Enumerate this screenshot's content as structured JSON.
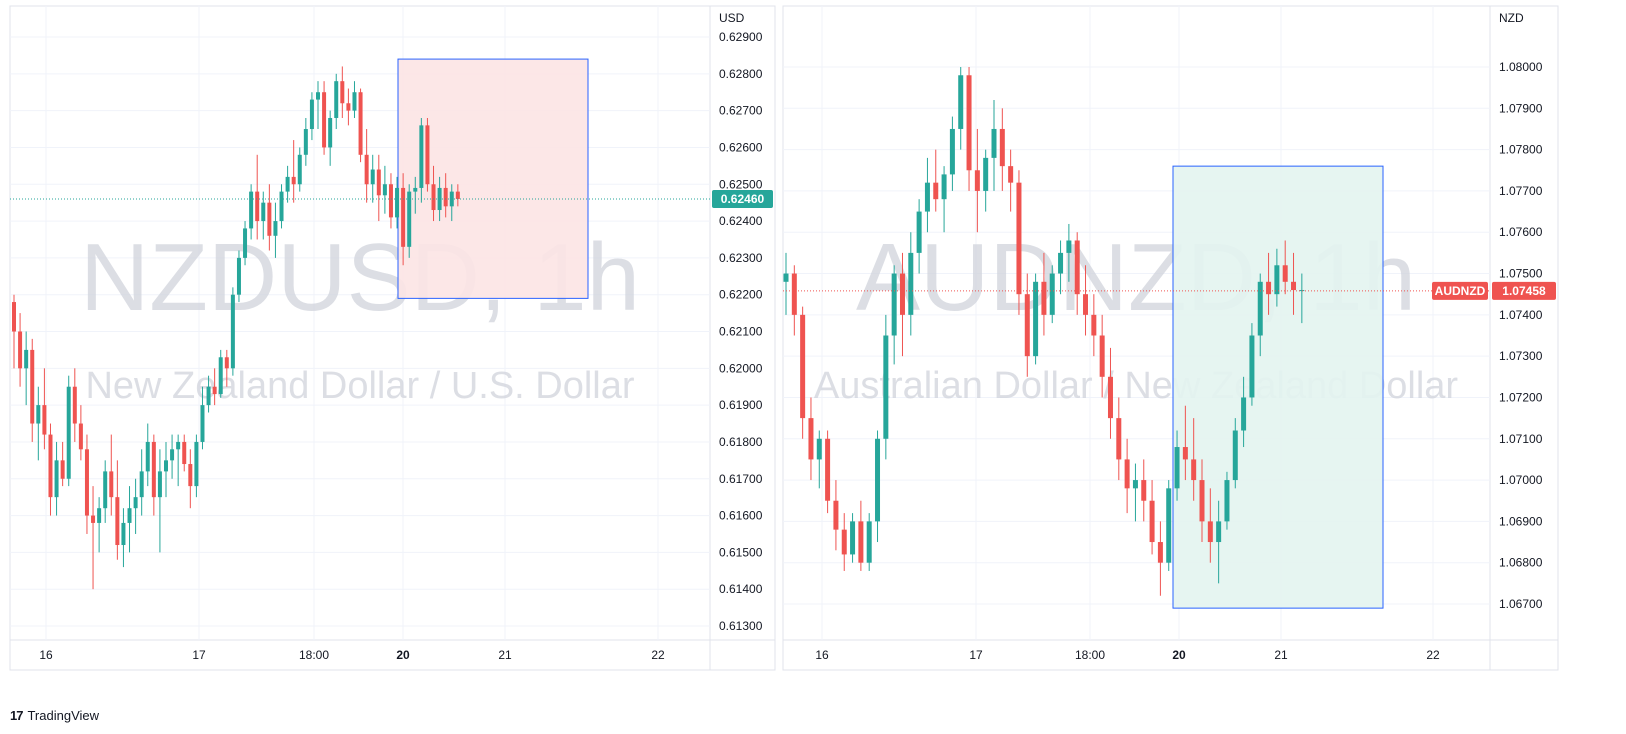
{
  "branding": {
    "logo_mark": "17",
    "logo_text": "TradingView"
  },
  "chart_data": [
    {
      "type": "candlestick",
      "symbol": "NZDUSD",
      "timeframe": "1h",
      "watermark_symbol": "NZDUSD, 1h",
      "watermark_description": "New Zealand Dollar / U.S. Dollar",
      "currency": "USD",
      "y_range": [
        0.6125,
        0.6293
      ],
      "y_ticks": [
        0.613,
        0.614,
        0.615,
        0.616,
        0.617,
        0.618,
        0.619,
        0.62,
        0.621,
        0.622,
        0.623,
        0.624,
        0.625,
        0.626,
        0.627,
        0.628,
        0.629
      ],
      "y_tick_labels": [
        "0.61300",
        "0.61400",
        "0.61500",
        "0.61600",
        "0.61700",
        "0.61800",
        "0.61900",
        "0.62000",
        "0.62100",
        "0.62200",
        "0.62300",
        "0.62400",
        "0.62500",
        "0.62600",
        "0.62700",
        "0.62800",
        "0.62900"
      ],
      "x_range": [
        15.6,
        22.6
      ],
      "x_ticks": [
        {
          "x": 16.0,
          "label": "16",
          "bold": false
        },
        {
          "x": 17.0,
          "label": "17",
          "bold": false
        },
        {
          "x": 17.75,
          "label": "18:00",
          "bold": false
        },
        {
          "x": 18.33,
          "label": "20",
          "bold": true
        },
        {
          "x": 19.0,
          "label": "21",
          "bold": false
        },
        {
          "x": 20.0,
          "label": "22",
          "bold": false
        }
      ],
      "last_price": 0.6246,
      "last_price_label": "0.62460",
      "badge_color": "#26a69a",
      "line_color": "#26a69a",
      "highlight_box": {
        "x_start": 18.3,
        "x_end": 19.55,
        "y_low": 0.6219,
        "y_high": 0.6284,
        "fill": "#fce4e4",
        "stroke": "#2962ff"
      },
      "series": [
        {
          "name": "candles",
          "ohlc": [
            [
              0.6218,
              0.622,
              0.62,
              0.621
            ],
            [
              0.621,
              0.6215,
              0.6195,
              0.62
            ],
            [
              0.62,
              0.621,
              0.619,
              0.6205
            ],
            [
              0.6205,
              0.6208,
              0.618,
              0.6185
            ],
            [
              0.6185,
              0.6195,
              0.6175,
              0.619
            ],
            [
              0.619,
              0.62,
              0.6178,
              0.6182
            ],
            [
              0.6182,
              0.6185,
              0.616,
              0.6165
            ],
            [
              0.6165,
              0.618,
              0.616,
              0.6175
            ],
            [
              0.6175,
              0.618,
              0.6168,
              0.617
            ],
            [
              0.617,
              0.6198,
              0.6168,
              0.6195
            ],
            [
              0.6195,
              0.62,
              0.618,
              0.6185
            ],
            [
              0.6185,
              0.619,
              0.6175,
              0.6178
            ],
            [
              0.6178,
              0.6182,
              0.6155,
              0.616
            ],
            [
              0.616,
              0.6168,
              0.614,
              0.6158
            ],
            [
              0.6158,
              0.6165,
              0.615,
              0.6162
            ],
            [
              0.6162,
              0.6175,
              0.6158,
              0.6172
            ],
            [
              0.6172,
              0.6182,
              0.616,
              0.6165
            ],
            [
              0.6165,
              0.6175,
              0.6148,
              0.6152
            ],
            [
              0.6152,
              0.6162,
              0.6146,
              0.6158
            ],
            [
              0.6158,
              0.6168,
              0.615,
              0.6162
            ],
            [
              0.6162,
              0.617,
              0.6155,
              0.6165
            ],
            [
              0.6165,
              0.6178,
              0.616,
              0.6172
            ],
            [
              0.6172,
              0.6185,
              0.6168,
              0.618
            ],
            [
              0.618,
              0.6182,
              0.616,
              0.6165
            ],
            [
              0.6165,
              0.6178,
              0.615,
              0.6172
            ],
            [
              0.6172,
              0.618,
              0.6165,
              0.6175
            ],
            [
              0.6175,
              0.6182,
              0.617,
              0.6178
            ],
            [
              0.6178,
              0.6182,
              0.6168,
              0.618
            ],
            [
              0.618,
              0.6182,
              0.6172,
              0.6174
            ],
            [
              0.6174,
              0.6178,
              0.6162,
              0.6168
            ],
            [
              0.6168,
              0.6182,
              0.6165,
              0.618
            ],
            [
              0.618,
              0.6195,
              0.6178,
              0.619
            ],
            [
              0.619,
              0.6198,
              0.6188,
              0.6195
            ],
            [
              0.6195,
              0.62,
              0.619,
              0.6193
            ],
            [
              0.6193,
              0.6205,
              0.6192,
              0.6203
            ],
            [
              0.6203,
              0.6205,
              0.6195,
              0.62
            ],
            [
              0.62,
              0.6222,
              0.6198,
              0.622
            ],
            [
              0.622,
              0.6232,
              0.6218,
              0.623
            ],
            [
              0.623,
              0.624,
              0.6228,
              0.6238
            ],
            [
              0.6238,
              0.625,
              0.6235,
              0.6248
            ],
            [
              0.6248,
              0.6258,
              0.6235,
              0.624
            ],
            [
              0.624,
              0.6248,
              0.6235,
              0.6245
            ],
            [
              0.6245,
              0.625,
              0.6232,
              0.6236
            ],
            [
              0.6236,
              0.6245,
              0.623,
              0.624
            ],
            [
              0.624,
              0.625,
              0.6238,
              0.6248
            ],
            [
              0.6248,
              0.6255,
              0.6245,
              0.6252
            ],
            [
              0.6252,
              0.6262,
              0.6245,
              0.625
            ],
            [
              0.625,
              0.626,
              0.6248,
              0.6258
            ],
            [
              0.6258,
              0.6268,
              0.6255,
              0.6265
            ],
            [
              0.6265,
              0.6275,
              0.6262,
              0.6273
            ],
            [
              0.6273,
              0.6278,
              0.6265,
              0.6275
            ],
            [
              0.6275,
              0.6278,
              0.6258,
              0.626
            ],
            [
              0.626,
              0.627,
              0.6255,
              0.6268
            ],
            [
              0.6268,
              0.628,
              0.6265,
              0.6278
            ],
            [
              0.6278,
              0.6282,
              0.6268,
              0.6272
            ],
            [
              0.6272,
              0.6276,
              0.6266,
              0.627
            ],
            [
              0.627,
              0.6278,
              0.6268,
              0.6275
            ],
            [
              0.6275,
              0.6276,
              0.6256,
              0.6258
            ],
            [
              0.6258,
              0.6265,
              0.6245,
              0.625
            ],
            [
              0.625,
              0.6258,
              0.6245,
              0.6254
            ],
            [
              0.6254,
              0.6258,
              0.624,
              0.6247
            ],
            [
              0.6247,
              0.6255,
              0.6242,
              0.625
            ],
            [
              0.625,
              0.6253,
              0.6238,
              0.6241
            ],
            [
              0.6241,
              0.6252,
              0.6238,
              0.6249
            ],
            [
              0.6249,
              0.6253,
              0.6228,
              0.6233
            ],
            [
              0.6233,
              0.625,
              0.623,
              0.6248
            ],
            [
              0.6248,
              0.6252,
              0.6242,
              0.6249
            ],
            [
              0.6249,
              0.6268,
              0.6245,
              0.6266
            ],
            [
              0.6266,
              0.6268,
              0.6248,
              0.625
            ],
            [
              0.625,
              0.6255,
              0.624,
              0.6243
            ],
            [
              0.6243,
              0.6252,
              0.624,
              0.6249
            ],
            [
              0.6249,
              0.6253,
              0.6241,
              0.6244
            ],
            [
              0.6244,
              0.625,
              0.624,
              0.6248
            ],
            [
              0.6248,
              0.625,
              0.6244,
              0.6246
            ]
          ]
        }
      ]
    },
    {
      "type": "candlestick",
      "symbol": "AUDNZD",
      "timeframe": "1h",
      "watermark_symbol": "AUDNZD, 1h",
      "watermark_description": "Australian Dollar / New Zealand Dollar",
      "currency": "NZD",
      "y_range": [
        1.0662,
        1.0814
      ],
      "y_ticks": [
        1.067,
        1.068,
        1.069,
        1.07,
        1.071,
        1.072,
        1.073,
        1.074,
        1.075,
        1.076,
        1.077,
        1.078,
        1.079,
        1.08
      ],
      "y_tick_labels": [
        "1.06700",
        "1.06800",
        "1.06900",
        "1.07000",
        "1.07100",
        "1.07200",
        "1.07300",
        "1.07400",
        "1.07500",
        "1.07600",
        "1.07700",
        "1.07800",
        "1.07900",
        "1.08000"
      ],
      "x_range": [
        15.6,
        22.6
      ],
      "x_ticks": [
        {
          "x": 16.0,
          "label": "16",
          "bold": false
        },
        {
          "x": 17.0,
          "label": "17",
          "bold": false
        },
        {
          "x": 17.75,
          "label": "18:00",
          "bold": false
        },
        {
          "x": 18.33,
          "label": "20",
          "bold": true
        },
        {
          "x": 19.0,
          "label": "21",
          "bold": false
        },
        {
          "x": 20.0,
          "label": "22",
          "bold": false
        }
      ],
      "last_price": 1.07458,
      "last_price_label": "1.07458",
      "symbol_badge": "AUDNZD",
      "badge_color": "#ef5350",
      "line_color": "#ef5350",
      "highlight_box": {
        "x_start": 18.3,
        "x_end": 19.65,
        "y_low": 1.0669,
        "y_high": 1.0776,
        "fill": "#e3f4ef",
        "stroke": "#2962ff"
      },
      "series": [
        {
          "name": "candles",
          "ohlc": [
            [
              1.0748,
              1.0755,
              1.074,
              1.075
            ],
            [
              1.075,
              1.0752,
              1.0735,
              1.074
            ],
            [
              1.074,
              1.0742,
              1.071,
              1.0715
            ],
            [
              1.0715,
              1.072,
              1.07,
              1.0705
            ],
            [
              1.0705,
              1.0712,
              1.0698,
              1.071
            ],
            [
              1.071,
              1.0712,
              1.0692,
              1.0695
            ],
            [
              1.0695,
              1.07,
              1.0683,
              1.0688
            ],
            [
              1.0688,
              1.0692,
              1.0678,
              1.0682
            ],
            [
              1.0682,
              1.0692,
              1.068,
              1.069
            ],
            [
              1.069,
              1.0695,
              1.0678,
              1.068
            ],
            [
              1.068,
              1.0692,
              1.0678,
              1.069
            ],
            [
              1.069,
              1.0712,
              1.0685,
              1.071
            ],
            [
              1.071,
              1.074,
              1.0705,
              1.0735
            ],
            [
              1.0735,
              1.0752,
              1.0728,
              1.075
            ],
            [
              1.075,
              1.0755,
              1.073,
              1.074
            ],
            [
              1.074,
              1.076,
              1.0735,
              1.0755
            ],
            [
              1.0755,
              1.0768,
              1.075,
              1.0765
            ],
            [
              1.0765,
              1.0778,
              1.076,
              1.0772
            ],
            [
              1.0772,
              1.078,
              1.0765,
              1.0768
            ],
            [
              1.0768,
              1.0776,
              1.076,
              1.0774
            ],
            [
              1.0774,
              1.0788,
              1.077,
              1.0785
            ],
            [
              1.0785,
              1.08,
              1.078,
              1.0798
            ],
            [
              1.0798,
              1.08,
              1.077,
              1.0775
            ],
            [
              1.0775,
              1.0785,
              1.076,
              1.077
            ],
            [
              1.077,
              1.078,
              1.0765,
              1.0778
            ],
            [
              1.0778,
              1.0792,
              1.077,
              1.0785
            ],
            [
              1.0785,
              1.079,
              1.077,
              1.0776
            ],
            [
              1.0776,
              1.078,
              1.0765,
              1.0772
            ],
            [
              1.0772,
              1.0775,
              1.074,
              1.0745
            ],
            [
              1.0745,
              1.075,
              1.0725,
              1.073
            ],
            [
              1.073,
              1.075,
              1.0728,
              1.0748
            ],
            [
              1.0748,
              1.0755,
              1.0735,
              1.074
            ],
            [
              1.074,
              1.0752,
              1.0738,
              1.075
            ],
            [
              1.075,
              1.0758,
              1.0745,
              1.0755
            ],
            [
              1.0755,
              1.0762,
              1.0748,
              1.0758
            ],
            [
              1.0758,
              1.076,
              1.074,
              1.0745
            ],
            [
              1.0745,
              1.0752,
              1.0735,
              1.074
            ],
            [
              1.074,
              1.0745,
              1.073,
              1.0735
            ],
            [
              1.0735,
              1.074,
              1.072,
              1.0725
            ],
            [
              1.0725,
              1.0732,
              1.071,
              1.0715
            ],
            [
              1.0715,
              1.072,
              1.07,
              1.0705
            ],
            [
              1.0705,
              1.071,
              1.0692,
              1.0698
            ],
            [
              1.0698,
              1.0704,
              1.069,
              1.07
            ],
            [
              1.07,
              1.0705,
              1.069,
              1.0695
            ],
            [
              1.0695,
              1.07,
              1.0682,
              1.0685
            ],
            [
              1.0685,
              1.069,
              1.0672,
              1.068
            ],
            [
              1.068,
              1.07,
              1.0678,
              1.0698
            ],
            [
              1.0698,
              1.0712,
              1.0695,
              1.0708
            ],
            [
              1.0708,
              1.0718,
              1.07,
              1.0705
            ],
            [
              1.0705,
              1.0715,
              1.0695,
              1.07
            ],
            [
              1.07,
              1.0705,
              1.0685,
              1.069
            ],
            [
              1.069,
              1.0698,
              1.068,
              1.0685
            ],
            [
              1.0685,
              1.0695,
              1.0675,
              1.069
            ],
            [
              1.069,
              1.0702,
              1.0688,
              1.07
            ],
            [
              1.07,
              1.0715,
              1.0698,
              1.0712
            ],
            [
              1.0712,
              1.0725,
              1.0708,
              1.072
            ],
            [
              1.072,
              1.0738,
              1.0718,
              1.0735
            ],
            [
              1.0735,
              1.075,
              1.073,
              1.0748
            ],
            [
              1.0748,
              1.0755,
              1.074,
              1.0745
            ],
            [
              1.0745,
              1.0756,
              1.0742,
              1.0752
            ],
            [
              1.0752,
              1.0758,
              1.0745,
              1.0748
            ],
            [
              1.0748,
              1.0755,
              1.074,
              1.0746
            ],
            [
              1.0746,
              1.075,
              1.0738,
              1.0746
            ]
          ]
        }
      ]
    }
  ]
}
